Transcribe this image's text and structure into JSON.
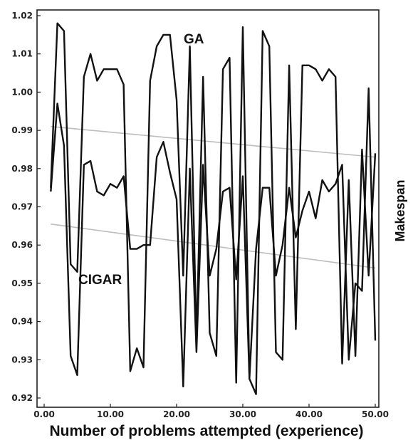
{
  "chart_data": {
    "type": "line",
    "title": "",
    "xlabel": "Number of problems attempted (experience)",
    "ylabel": "Makespan",
    "xlim": [
      0,
      50
    ],
    "ylim": [
      0.92,
      1.02
    ],
    "x_tick_labels": [
      "0.00",
      "10.00",
      "20.00",
      "30.00",
      "40.00",
      "50.00"
    ],
    "y_tick_labels": [
      "0.92",
      "0.93",
      "0.94",
      "0.95",
      "0.96",
      "0.97",
      "0.98",
      "0.99",
      "1.00",
      "1.01",
      "1.02"
    ],
    "y_ticks": [
      0.92,
      0.93,
      0.94,
      0.95,
      0.96,
      0.97,
      0.98,
      0.99,
      1.0,
      1.01,
      1.02
    ],
    "x_ticks": [
      0,
      10,
      20,
      30,
      40,
      50
    ],
    "annotations": [
      "GA",
      "CIGAR"
    ],
    "grid": false,
    "legend": "none",
    "colors": {
      "series": "#111111",
      "trend": "#bdbdbd"
    },
    "series": [
      {
        "x": [
          1,
          2,
          3,
          4,
          5,
          6,
          7,
          8,
          9,
          10,
          11,
          12,
          13,
          14,
          15,
          16,
          17,
          18,
          19,
          20,
          21,
          22,
          23,
          24,
          25,
          26,
          27,
          28,
          29,
          30,
          31,
          32,
          33,
          34,
          35,
          36,
          37,
          38,
          39,
          40,
          41,
          42,
          43,
          44,
          45,
          46,
          47,
          48,
          49,
          50
        ],
        "values": [
          0.975,
          1.018,
          1.016,
          0.955,
          0.953,
          1.004,
          1.01,
          1.003,
          1.006,
          1.006,
          1.006,
          1.002,
          0.927,
          0.933,
          0.928,
          1.003,
          1.012,
          1.015,
          1.015,
          0.998,
          0.952,
          1.012,
          0.935,
          1.004,
          0.937,
          0.931,
          1.006,
          1.009,
          0.924,
          1.017,
          0.925,
          0.921,
          1.016,
          1.012,
          0.932,
          0.93,
          1.007,
          0.938,
          1.007,
          1.007,
          1.006,
          1.003,
          1.006,
          1.004,
          0.929,
          0.977,
          0.931,
          0.985,
          0.952,
          0.984
        ]
      },
      {
        "x": [
          1,
          2,
          3,
          4,
          5,
          6,
          7,
          8,
          9,
          10,
          11,
          12,
          13,
          14,
          15,
          16,
          17,
          18,
          19,
          20,
          21,
          22,
          23,
          24,
          25,
          26,
          27,
          28,
          29,
          30,
          31,
          32,
          33,
          34,
          35,
          36,
          37,
          38,
          39,
          40,
          41,
          42,
          43,
          44,
          45,
          46,
          47,
          48,
          49,
          50
        ],
        "values": [
          0.974,
          0.997,
          0.986,
          0.931,
          0.926,
          0.981,
          0.982,
          0.974,
          0.973,
          0.976,
          0.975,
          0.978,
          0.959,
          0.959,
          0.96,
          0.96,
          0.983,
          0.987,
          0.979,
          0.972,
          0.923,
          0.98,
          0.932,
          0.981,
          0.952,
          0.959,
          0.974,
          0.975,
          0.951,
          0.978,
          0.925,
          0.959,
          0.975,
          0.975,
          0.952,
          0.96,
          0.975,
          0.962,
          0.969,
          0.974,
          0.967,
          0.977,
          0.974,
          0.976,
          0.981,
          0.93,
          0.95,
          0.948,
          1.001,
          0.935
        ]
      }
    ],
    "trend_lines": [
      {
        "x": [
          1,
          50
        ],
        "y": [
          0.991,
          0.983
        ]
      },
      {
        "x": [
          1,
          50
        ],
        "y": [
          0.9655,
          0.954
        ]
      }
    ]
  }
}
